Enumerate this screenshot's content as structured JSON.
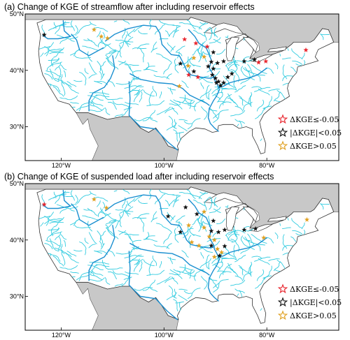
{
  "colors": {
    "ocean": "#ffffff",
    "neighbor_land": "#c8c8c8",
    "usa_land": "#ffffff",
    "river": "#33cce0",
    "river_main": "#1a8fd0",
    "red": "#e8242c",
    "black": "#111111",
    "orange": "#e0a020"
  },
  "legend": {
    "red_label": "ΔKGE≤-0.05",
    "black_label": "|ΔKGE|<0.05",
    "orange_label": "ΔKGE>0.05"
  },
  "axes": {
    "lat_ticks": [
      "50°N",
      "40°N",
      "30°N"
    ],
    "lon_ticks": [
      "120°W",
      "100°W",
      "80°W"
    ]
  },
  "panels": [
    {
      "id": "a",
      "title": "(a) Change of KGE of streamflow after including reservoir effects",
      "stations": [
        {
          "lon": -123.3,
          "lat": 46.3,
          "cls": "black"
        },
        {
          "lon": -113.6,
          "lat": 47.2,
          "cls": "orange"
        },
        {
          "lon": -112.2,
          "lat": 46.0,
          "cls": "orange"
        },
        {
          "lon": -111.0,
          "lat": 45.7,
          "cls": "orange"
        },
        {
          "lon": -96.0,
          "lat": 45.5,
          "cls": "red"
        },
        {
          "lon": -93.8,
          "lat": 44.8,
          "cls": "red"
        },
        {
          "lon": -91.6,
          "lat": 44.2,
          "cls": "red"
        },
        {
          "lon": -90.4,
          "lat": 43.2,
          "cls": "black"
        },
        {
          "lon": -92.2,
          "lat": 42.4,
          "cls": "orange"
        },
        {
          "lon": -94.2,
          "lat": 42.2,
          "cls": "orange"
        },
        {
          "lon": -90.8,
          "lat": 41.5,
          "cls": "black"
        },
        {
          "lon": -89.6,
          "lat": 41.3,
          "cls": "black"
        },
        {
          "lon": -88.4,
          "lat": 41.6,
          "cls": "black"
        },
        {
          "lon": -91.4,
          "lat": 40.7,
          "cls": "black"
        },
        {
          "lon": -90.4,
          "lat": 40.3,
          "cls": "black"
        },
        {
          "lon": -96.8,
          "lat": 41.2,
          "cls": "black"
        },
        {
          "lon": -95.3,
          "lat": 40.8,
          "cls": "orange"
        },
        {
          "lon": -94.2,
          "lat": 39.8,
          "cls": "black"
        },
        {
          "lon": -95.2,
          "lat": 39.2,
          "cls": "red"
        },
        {
          "lon": -93.4,
          "lat": 38.8,
          "cls": "red"
        },
        {
          "lon": -90.6,
          "lat": 39.2,
          "cls": "black"
        },
        {
          "lon": -90.0,
          "lat": 38.6,
          "cls": "black"
        },
        {
          "lon": -89.4,
          "lat": 38.0,
          "cls": "black"
        },
        {
          "lon": -89.0,
          "lat": 37.3,
          "cls": "black"
        },
        {
          "lon": -88.4,
          "lat": 37.8,
          "cls": "black"
        },
        {
          "lon": -87.6,
          "lat": 38.8,
          "cls": "black"
        },
        {
          "lon": -86.8,
          "lat": 39.4,
          "cls": "black"
        },
        {
          "lon": -89.8,
          "lat": 37.8,
          "cls": "black"
        },
        {
          "lon": -84.4,
          "lat": 41.6,
          "cls": "black"
        },
        {
          "lon": -82.4,
          "lat": 41.9,
          "cls": "black"
        },
        {
          "lon": -81.6,
          "lat": 41.4,
          "cls": "red"
        },
        {
          "lon": -80.2,
          "lat": 41.6,
          "cls": "red"
        },
        {
          "lon": -72.4,
          "lat": 43.6,
          "cls": "red"
        },
        {
          "lon": -97.0,
          "lat": 37.2,
          "cls": "orange"
        }
      ]
    },
    {
      "id": "b",
      "title": "(b) Change of KGE of suspended load after including reservoir effects",
      "stations": [
        {
          "lon": -123.3,
          "lat": 46.3,
          "cls": "red"
        },
        {
          "lon": -113.6,
          "lat": 47.2,
          "cls": "orange"
        },
        {
          "lon": -111.2,
          "lat": 45.7,
          "cls": "orange"
        },
        {
          "lon": -99.2,
          "lat": 44.2,
          "cls": "black"
        },
        {
          "lon": -95.8,
          "lat": 45.8,
          "cls": "black"
        },
        {
          "lon": -92.2,
          "lat": 45.0,
          "cls": "orange"
        },
        {
          "lon": -93.6,
          "lat": 44.6,
          "cls": "black"
        },
        {
          "lon": -90.4,
          "lat": 43.4,
          "cls": "black"
        },
        {
          "lon": -95.2,
          "lat": 42.6,
          "cls": "orange"
        },
        {
          "lon": -92.2,
          "lat": 42.2,
          "cls": "orange"
        },
        {
          "lon": -96.8,
          "lat": 41.4,
          "cls": "black"
        },
        {
          "lon": -90.8,
          "lat": 41.6,
          "cls": "black"
        },
        {
          "lon": -89.4,
          "lat": 41.4,
          "cls": "black"
        },
        {
          "lon": -88.2,
          "lat": 41.8,
          "cls": "black"
        },
        {
          "lon": -91.2,
          "lat": 40.6,
          "cls": "orange"
        },
        {
          "lon": -90.2,
          "lat": 40.0,
          "cls": "orange"
        },
        {
          "lon": -94.6,
          "lat": 39.6,
          "cls": "orange"
        },
        {
          "lon": -93.2,
          "lat": 39.0,
          "cls": "orange"
        },
        {
          "lon": -90.8,
          "lat": 39.0,
          "cls": "black"
        },
        {
          "lon": -89.6,
          "lat": 38.4,
          "cls": "orange"
        },
        {
          "lon": -88.8,
          "lat": 37.8,
          "cls": "orange"
        },
        {
          "lon": -88.2,
          "lat": 38.9,
          "cls": "black"
        },
        {
          "lon": -89.2,
          "lat": 37.2,
          "cls": "black"
        },
        {
          "lon": -90.2,
          "lat": 37.0,
          "cls": "orange"
        },
        {
          "lon": -84.4,
          "lat": 41.8,
          "cls": "black"
        },
        {
          "lon": -82.2,
          "lat": 42.0,
          "cls": "black"
        },
        {
          "lon": -80.6,
          "lat": 40.4,
          "cls": "orange"
        },
        {
          "lon": -72.2,
          "lat": 43.6,
          "cls": "orange"
        }
      ]
    }
  ]
}
